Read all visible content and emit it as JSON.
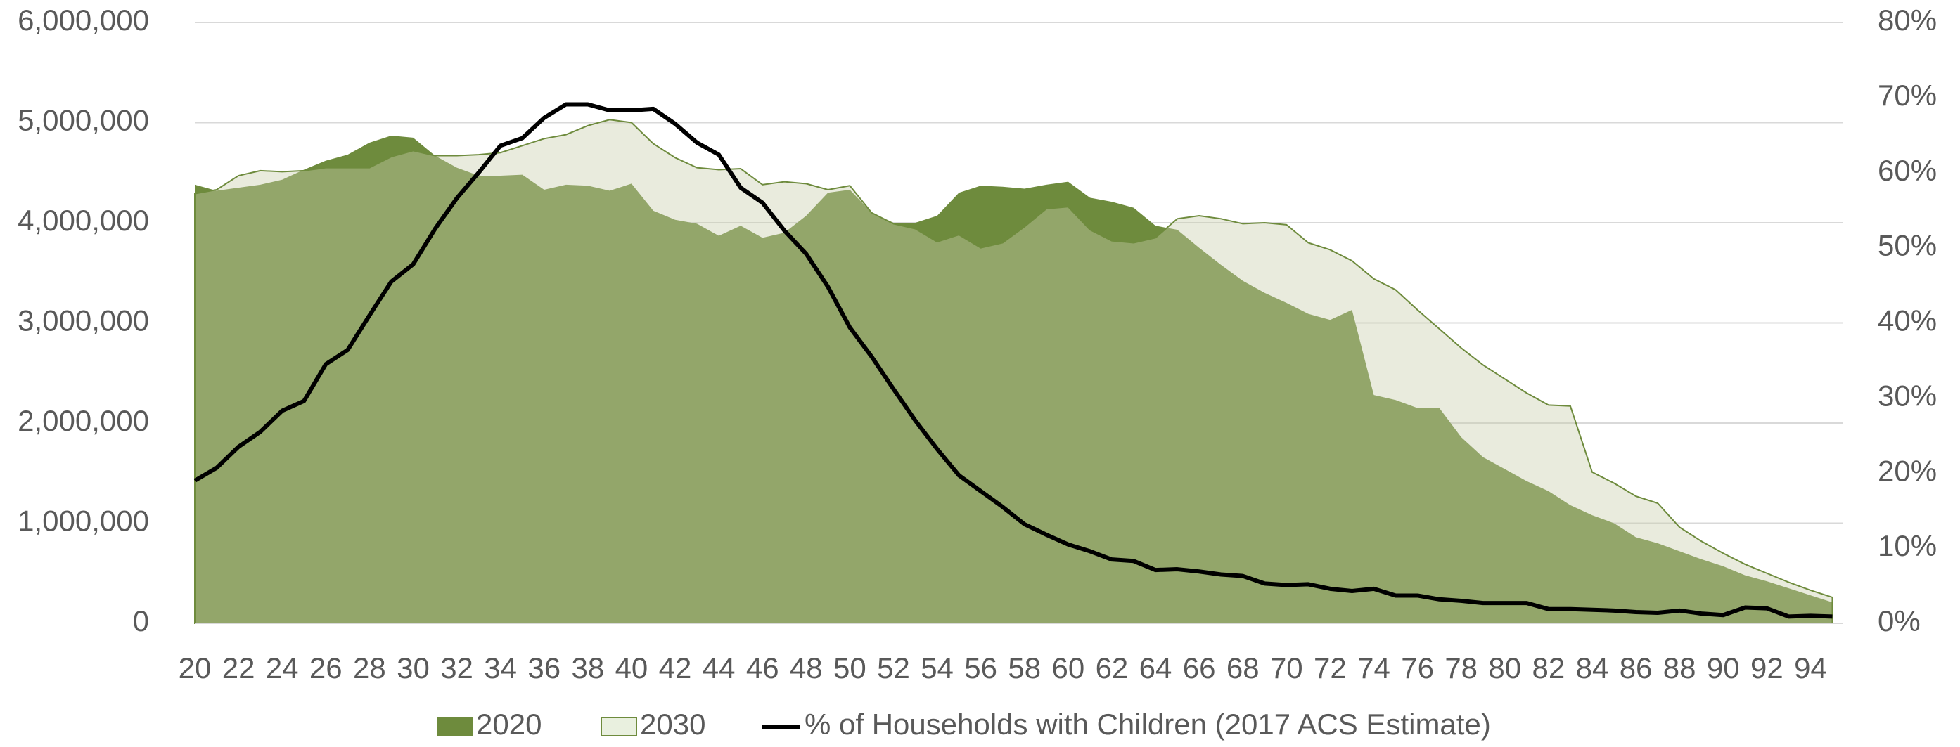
{
  "chart_data": {
    "type": "area",
    "x": [
      20,
      21,
      22,
      23,
      24,
      25,
      26,
      27,
      28,
      29,
      30,
      31,
      32,
      33,
      34,
      35,
      36,
      37,
      38,
      39,
      40,
      41,
      42,
      43,
      44,
      45,
      46,
      47,
      48,
      49,
      50,
      51,
      52,
      53,
      54,
      55,
      56,
      57,
      58,
      59,
      60,
      61,
      62,
      63,
      64,
      65,
      66,
      67,
      68,
      69,
      70,
      71,
      72,
      73,
      74,
      75,
      76,
      77,
      78,
      79,
      80,
      81,
      82,
      83,
      84,
      85,
      86,
      87,
      88,
      89,
      90,
      91,
      92,
      93,
      94,
      95
    ],
    "xlim": [
      20,
      95.5
    ],
    "xticks": [
      20,
      22,
      24,
      26,
      28,
      30,
      32,
      34,
      36,
      38,
      40,
      42,
      44,
      46,
      48,
      50,
      52,
      54,
      56,
      58,
      60,
      62,
      64,
      66,
      68,
      70,
      72,
      74,
      76,
      78,
      80,
      82,
      84,
      86,
      88,
      90,
      92,
      94
    ],
    "ylim": [
      0,
      6000000
    ],
    "yticks": [
      0,
      {
        "value": 1000000,
        "label": "1,000,000"
      },
      {
        "value": 2000000,
        "label": "2,000,000"
      },
      {
        "value": 3000000,
        "label": "3,000,000"
      },
      {
        "value": 4000000,
        "label": "4,000,000"
      },
      {
        "value": 5000000,
        "label": "5,000,000"
      },
      {
        "value": 6000000,
        "label": "6,000,000"
      }
    ],
    "y2lim": [
      0,
      80
    ],
    "y2ticks": [
      {
        "value": 0,
        "label": "0%"
      },
      {
        "value": 10,
        "label": "10%"
      },
      {
        "value": 20,
        "label": "20%"
      },
      {
        "value": 30,
        "label": "30%"
      },
      {
        "value": 40,
        "label": "40%"
      },
      {
        "value": 50,
        "label": "50%"
      },
      {
        "value": 60,
        "label": "60%"
      },
      {
        "value": 70,
        "label": "70%"
      },
      {
        "value": 80,
        "label": "80%"
      }
    ],
    "grid": true,
    "legend": "bottom",
    "series": [
      {
        "name": "2020",
        "type": "area",
        "color": "#6e8b3d",
        "values": [
          4380000,
          4320000,
          4350000,
          4380000,
          4430000,
          4530000,
          4620000,
          4680000,
          4800000,
          4870000,
          4850000,
          4670000,
          4550000,
          4470000,
          4470000,
          4480000,
          4330000,
          4380000,
          4370000,
          4320000,
          4390000,
          4120000,
          4030000,
          3990000,
          3870000,
          3970000,
          3850000,
          3900000,
          4070000,
          4300000,
          4330000,
          4100000,
          4000000,
          4000000,
          4070000,
          4300000,
          4370000,
          4360000,
          4340000,
          4380000,
          4410000,
          4250000,
          4210000,
          4150000,
          3970000,
          3930000,
          3750000,
          3580000,
          3420000,
          3300000,
          3200000,
          3090000,
          3030000,
          3130000,
          2280000,
          2230000,
          2150000,
          2150000,
          1860000,
          1660000,
          1540000,
          1420000,
          1320000,
          1180000,
          1080000,
          1000000,
          860000,
          800000,
          720000,
          640000,
          570000,
          480000,
          420000,
          350000,
          280000,
          210000
        ]
      },
      {
        "name": "2030",
        "type": "area",
        "color": "#e9f0df",
        "values": [
          4290000,
          4330000,
          4470000,
          4520000,
          4510000,
          4520000,
          4550000,
          4550000,
          4550000,
          4660000,
          4720000,
          4670000,
          4670000,
          4680000,
          4700000,
          4770000,
          4840000,
          4880000,
          4970000,
          5030000,
          5000000,
          4790000,
          4650000,
          4550000,
          4530000,
          4540000,
          4380000,
          4410000,
          4390000,
          4330000,
          4370000,
          4100000,
          3990000,
          3940000,
          3810000,
          3880000,
          3750000,
          3800000,
          3960000,
          4140000,
          4160000,
          3930000,
          3820000,
          3800000,
          3850000,
          4040000,
          4070000,
          4040000,
          3990000,
          4000000,
          3980000,
          3800000,
          3730000,
          3620000,
          3440000,
          3330000,
          3130000,
          2940000,
          2750000,
          2580000,
          2440000,
          2300000,
          2180000,
          2170000,
          1510000,
          1400000,
          1270000,
          1200000,
          960000,
          820000,
          700000,
          590000,
          500000,
          410000,
          330000,
          260000
        ]
      },
      {
        "name": "% of Households with Children (2017 ACS Estimate)",
        "type": "line",
        "axis": "y2",
        "color": "#000000",
        "values": [
          19,
          20.7,
          23.5,
          25.5,
          28.3,
          29.6,
          34.5,
          36.4,
          41,
          45.5,
          47.8,
          52.5,
          56.6,
          60,
          63.6,
          64.6,
          67.3,
          69.1,
          69.1,
          68.3,
          68.3,
          68.5,
          66.5,
          64,
          62.4,
          58,
          56,
          52.3,
          49.2,
          44.8,
          39.4,
          35.5,
          31.2,
          27,
          23.2,
          19.7,
          17.6,
          15.5,
          13.2,
          11.8,
          10.5,
          9.6,
          8.5,
          8.3,
          7.1,
          7.2,
          6.9,
          6.5,
          6.3,
          5.3,
          5.1,
          5.2,
          4.6,
          4.3,
          4.6,
          3.7,
          3.7,
          3.2,
          3,
          2.7,
          2.7,
          2.7,
          1.9,
          1.9,
          1.8,
          1.7,
          1.5,
          1.4,
          1.7,
          1.3,
          1.1,
          2.1,
          2,
          0.9,
          1,
          0.9
        ]
      }
    ]
  }
}
